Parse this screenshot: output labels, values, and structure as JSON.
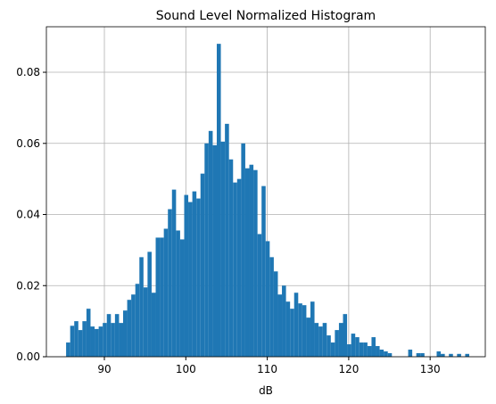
{
  "chart_data": {
    "type": "histogram",
    "title": "Sound Level Normalized Histogram",
    "x_label": "dB",
    "color": "#1f77b4",
    "grid": true,
    "bins": [
      85.3,
      85.8,
      86.3,
      86.8,
      87.3,
      87.8,
      88.3,
      88.8,
      89.3,
      89.8,
      90.3,
      90.8,
      91.3,
      91.8,
      92.3,
      92.8,
      93.3,
      93.8,
      94.3,
      94.8,
      95.3,
      95.8,
      96.3,
      96.8,
      97.3,
      97.8,
      98.3,
      98.8,
      99.3,
      99.8,
      100.3,
      100.8,
      101.3,
      101.8,
      102.3,
      102.8,
      103.3,
      103.8,
      104.3,
      104.8,
      105.3,
      105.8,
      106.3,
      106.8,
      107.3,
      107.8,
      108.3,
      108.8,
      109.3,
      109.8,
      110.3,
      110.8,
      111.3,
      111.8,
      112.3,
      112.8,
      113.3,
      113.8,
      114.3,
      114.8,
      115.3,
      115.8,
      116.3,
      116.8,
      117.3,
      117.8,
      118.3,
      118.8,
      119.3,
      119.8,
      120.3,
      120.8,
      121.3,
      121.8,
      122.3,
      122.8,
      123.3,
      123.8,
      124.3,
      124.8,
      125.3,
      125.8,
      126.3,
      126.8,
      127.3,
      127.8,
      128.3,
      128.8,
      129.3,
      129.8,
      130.3,
      130.8,
      131.3,
      131.8,
      132.3,
      132.8,
      133.3,
      133.8,
      134.3,
      134.8
    ],
    "values": [
      0.004,
      0.0087,
      0.01,
      0.0075,
      0.01,
      0.0135,
      0.0085,
      0.0078,
      0.0085,
      0.0095,
      0.012,
      0.0095,
      0.012,
      0.0095,
      0.013,
      0.016,
      0.0175,
      0.0205,
      0.028,
      0.0195,
      0.0295,
      0.018,
      0.0335,
      0.0335,
      0.036,
      0.0415,
      0.047,
      0.0355,
      0.033,
      0.0455,
      0.0435,
      0.0465,
      0.0445,
      0.0515,
      0.06,
      0.0635,
      0.0595,
      0.088,
      0.0605,
      0.0655,
      0.0555,
      0.049,
      0.05,
      0.06,
      0.053,
      0.054,
      0.0525,
      0.0345,
      0.048,
      0.0325,
      0.028,
      0.024,
      0.0175,
      0.02,
      0.0155,
      0.0135,
      0.018,
      0.015,
      0.0145,
      0.011,
      0.0155,
      0.0095,
      0.0085,
      0.0095,
      0.006,
      0.004,
      0.0075,
      0.0095,
      0.012,
      0.0035,
      0.0065,
      0.0055,
      0.004,
      0.004,
      0.003,
      0.0055,
      0.003,
      0.002,
      0.0015,
      0.001,
      0,
      0,
      0,
      0,
      0.002,
      0,
      0.001,
      0.001,
      0,
      0,
      0,
      0.0015,
      0.0008,
      0,
      0.0008,
      0,
      0.0008,
      0,
      0.0008
    ],
    "xlim": [
      82.88,
      136.77
    ],
    "xticks": [
      90,
      100,
      110,
      120,
      130
    ],
    "ylim": [
      0,
      0.0928
    ],
    "yticks": [
      {
        "value": 0,
        "label": "0.00"
      },
      {
        "value": 0.02,
        "label": "0.02"
      },
      {
        "value": 0.04,
        "label": "0.04"
      },
      {
        "value": 0.06,
        "label": "0.06"
      },
      {
        "value": 0.08,
        "label": "0.08"
      }
    ]
  }
}
